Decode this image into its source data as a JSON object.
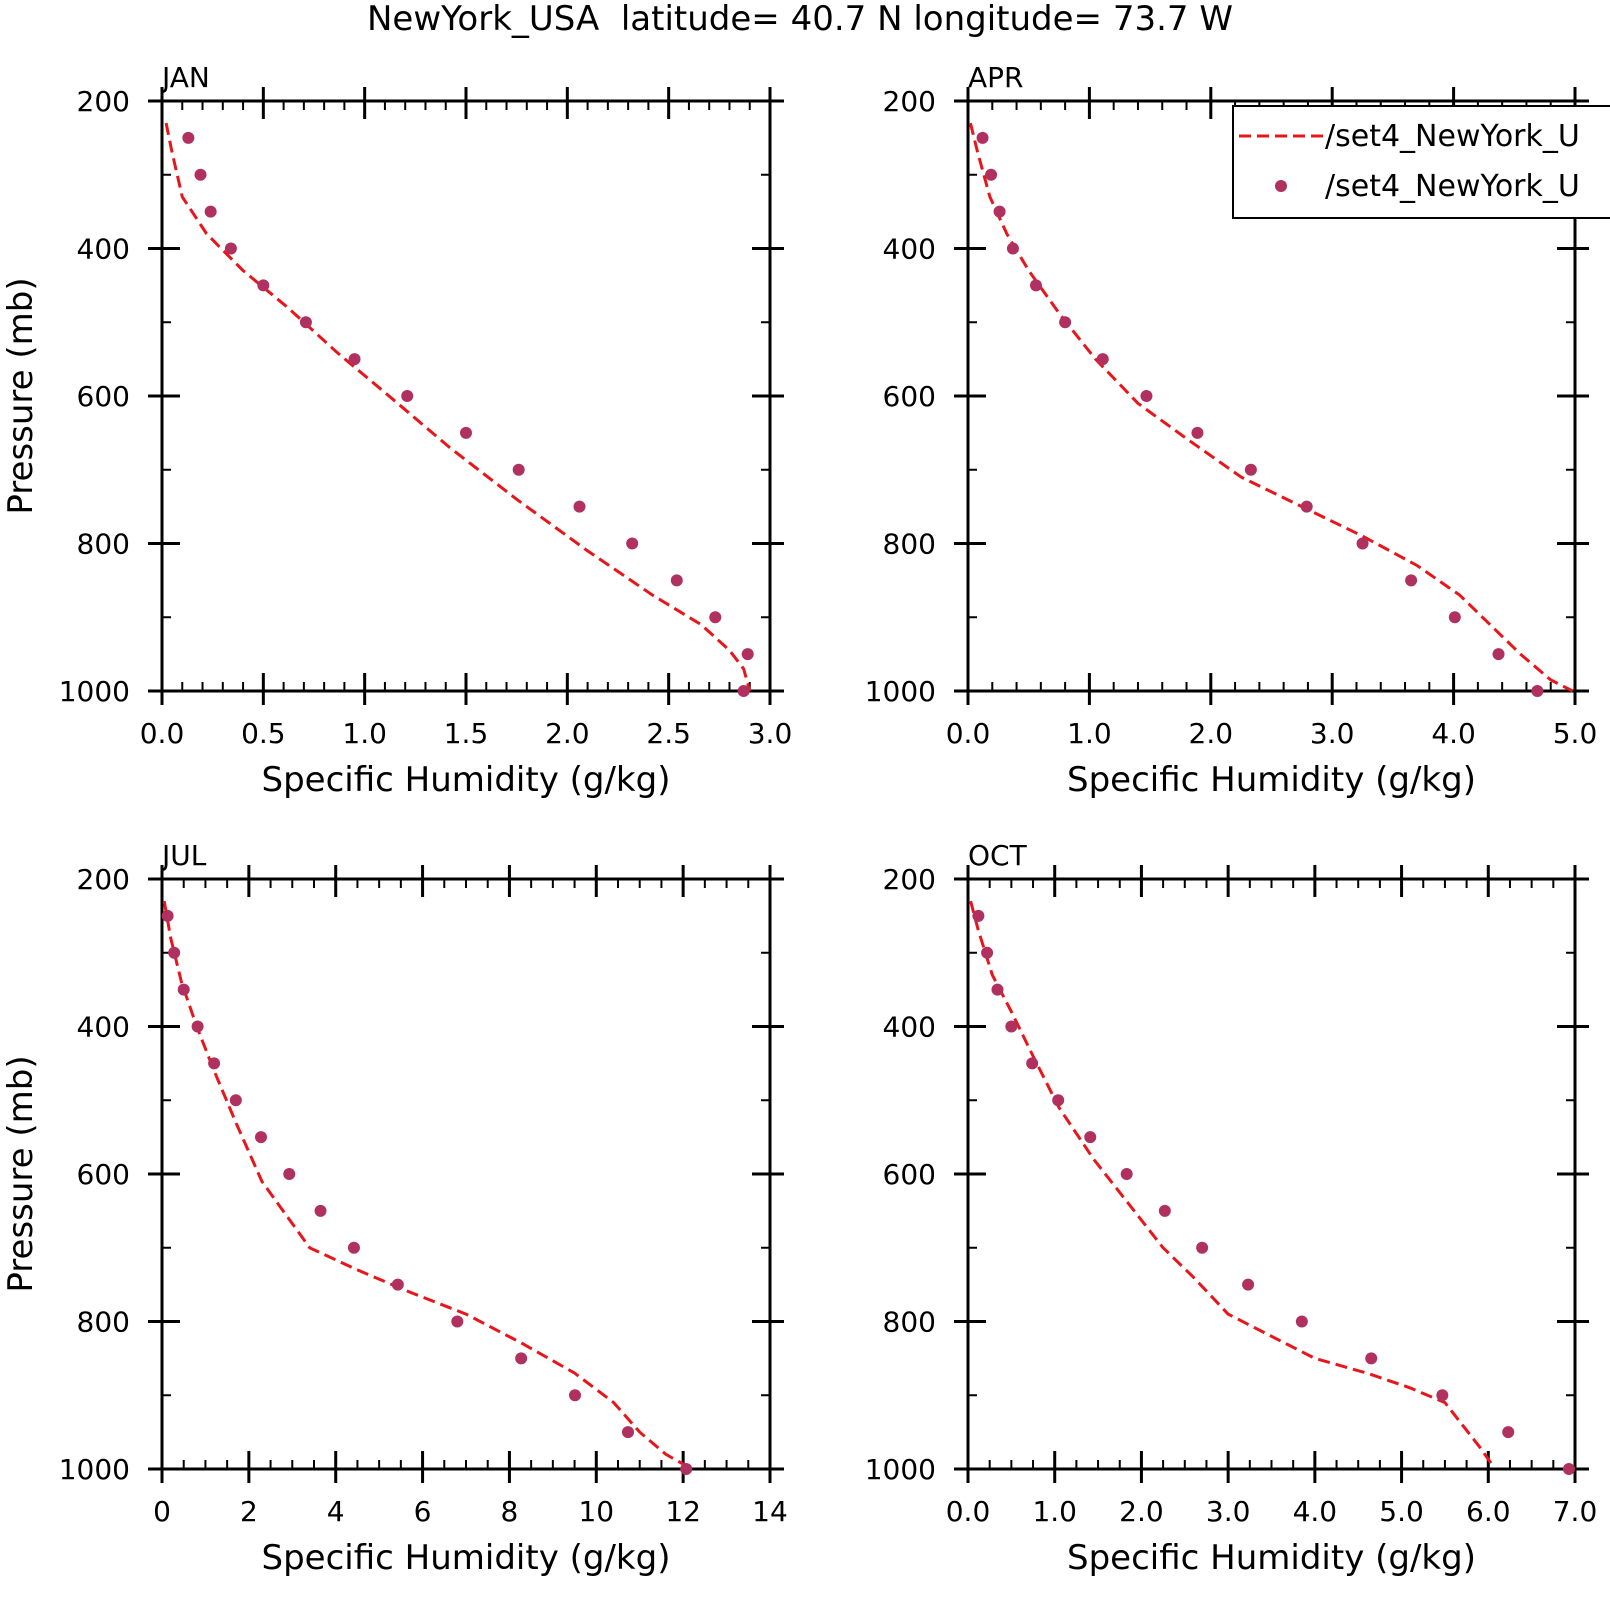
{
  "figure": {
    "title": "NewYork_USA  latitude= 40.7 N longitude= 73.7 W"
  },
  "legend": {
    "placement": "top-right of APR panel",
    "entries": [
      {
        "label": "/set4_NewYork_U",
        "style": "dashed-line",
        "color": "#e8161b"
      },
      {
        "label": "/set4_NewYork_U",
        "style": "dot",
        "color": "#b03060"
      }
    ]
  },
  "chart_data": [
    {
      "type": "line",
      "panel": "JAN",
      "title": "JAN",
      "xlabel": "Specific Humidity (g/kg)",
      "ylabel": "Pressure (mb)",
      "xlim": [
        0,
        3.0
      ],
      "ylim": [
        1000,
        200
      ],
      "yticks": [
        200,
        400,
        600,
        800,
        1000
      ],
      "xticks": [
        0,
        0.5,
        1.0,
        1.5,
        2.0,
        2.5,
        3.0
      ],
      "xtick_labels": [
        "0.0",
        "0.5",
        "1.0",
        "1.5",
        "2.0",
        "2.5",
        "3.0"
      ],
      "x_minor_step": 0.1,
      "y_minor_step": 100,
      "series": [
        {
          "style": "dashed-line",
          "color": "#e8161b",
          "x": [
            0.02,
            0.05,
            0.1,
            0.22,
            0.4,
            0.62,
            0.86,
            1.12,
            1.42,
            1.75,
            2.1,
            2.42,
            2.66,
            2.8,
            2.87,
            2.9
          ],
          "y": [
            230,
            270,
            330,
            380,
            430,
            480,
            540,
            600,
            670,
            740,
            810,
            870,
            910,
            945,
            970,
            1000
          ]
        },
        {
          "style": "dot",
          "color": "#b03060",
          "x": [
            0.13,
            0.19,
            0.24,
            0.34,
            0.5,
            0.71,
            0.95,
            1.21,
            1.5,
            1.76,
            2.06,
            2.32,
            2.54,
            2.73,
            2.89,
            2.87
          ],
          "y": [
            250,
            300,
            350,
            400,
            450,
            500,
            550,
            600,
            650,
            700,
            750,
            800,
            850,
            900,
            950,
            1000
          ]
        }
      ]
    },
    {
      "type": "line",
      "panel": "APR",
      "title": "APR",
      "xlabel": "Specific Humidity (g/kg)",
      "ylabel": "",
      "xlim": [
        0,
        5.0
      ],
      "ylim": [
        1000,
        200
      ],
      "yticks": [
        200,
        400,
        600,
        800,
        1000
      ],
      "xticks": [
        0,
        1.0,
        2.0,
        3.0,
        4.0,
        5.0
      ],
      "xtick_labels": [
        "0.0",
        "1.0",
        "2.0",
        "3.0",
        "4.0",
        "5.0"
      ],
      "x_minor_step": 0.2,
      "y_minor_step": 100,
      "series": [
        {
          "style": "dashed-line",
          "color": "#e8161b",
          "x": [
            0.02,
            0.08,
            0.18,
            0.32,
            0.5,
            0.76,
            1.05,
            1.4,
            1.82,
            2.25,
            2.75,
            3.25,
            3.7,
            4.05,
            4.3,
            4.55,
            4.8,
            4.98
          ],
          "y": [
            230,
            270,
            330,
            380,
            430,
            490,
            550,
            610,
            660,
            710,
            750,
            790,
            830,
            870,
            910,
            950,
            985,
            1000
          ]
        },
        {
          "style": "dot",
          "color": "#b03060",
          "x": [
            0.12,
            0.19,
            0.26,
            0.37,
            0.56,
            0.8,
            1.11,
            1.47,
            1.89,
            2.33,
            2.79,
            3.25,
            3.65,
            4.01,
            4.37,
            4.69
          ],
          "y": [
            250,
            300,
            350,
            400,
            450,
            500,
            550,
            600,
            650,
            700,
            750,
            800,
            850,
            900,
            950,
            1000
          ]
        }
      ]
    },
    {
      "type": "line",
      "panel": "JUL",
      "title": "JUL",
      "xlabel": "Specific Humidity (g/kg)",
      "ylabel": "Pressure (mb)",
      "xlim": [
        0,
        14
      ],
      "ylim": [
        1000,
        200
      ],
      "yticks": [
        200,
        400,
        600,
        800,
        1000
      ],
      "xticks": [
        0,
        2,
        4,
        6,
        8,
        10,
        12,
        14
      ],
      "xtick_labels": [
        "0",
        "2",
        "4",
        "6",
        "8",
        "10",
        "12",
        "14"
      ],
      "x_minor_step": 0.5,
      "y_minor_step": 100,
      "series": [
        {
          "style": "dashed-line",
          "color": "#e8161b",
          "x": [
            0.05,
            0.2,
            0.45,
            0.8,
            1.2,
            1.7,
            2.3,
            3.4,
            4.5,
            5.7,
            7.0,
            8.3,
            9.5,
            10.4,
            11.0,
            11.6,
            12.2
          ],
          "y": [
            230,
            280,
            340,
            400,
            460,
            530,
            610,
            700,
            730,
            760,
            790,
            830,
            870,
            910,
            950,
            980,
            1000
          ]
        },
        {
          "style": "dot",
          "color": "#b03060",
          "x": [
            0.13,
            0.28,
            0.5,
            0.82,
            1.2,
            1.7,
            2.28,
            2.93,
            3.65,
            4.42,
            5.43,
            6.8,
            8.27,
            9.51,
            10.73,
            12.07
          ],
          "y": [
            250,
            300,
            350,
            400,
            450,
            500,
            550,
            600,
            650,
            700,
            750,
            800,
            850,
            900,
            950,
            1000
          ]
        }
      ]
    },
    {
      "type": "line",
      "panel": "OCT",
      "title": "OCT",
      "xlabel": "Specific Humidity (g/kg)",
      "ylabel": "",
      "xlim": [
        0,
        7.0
      ],
      "ylim": [
        1000,
        200
      ],
      "yticks": [
        200,
        400,
        600,
        800,
        1000
      ],
      "xticks": [
        0,
        1.0,
        2.0,
        3.0,
        4.0,
        5.0,
        6.0,
        7.0
      ],
      "xtick_labels": [
        "0.0",
        "1.0",
        "2.0",
        "3.0",
        "4.0",
        "5.0",
        "6.0",
        "7.0"
      ],
      "x_minor_step": 0.25,
      "y_minor_step": 100,
      "series": [
        {
          "style": "dashed-line",
          "color": "#e8161b",
          "x": [
            0.03,
            0.12,
            0.28,
            0.5,
            0.75,
            1.05,
            1.45,
            1.85,
            2.25,
            2.6,
            3.0,
            3.5,
            4.0,
            4.6,
            5.1,
            5.5,
            5.7,
            5.9,
            6.05
          ],
          "y": [
            230,
            270,
            330,
            380,
            440,
            510,
            580,
            640,
            700,
            740,
            790,
            820,
            850,
            870,
            890,
            910,
            940,
            970,
            995
          ]
        },
        {
          "style": "dot",
          "color": "#b03060",
          "x": [
            0.12,
            0.22,
            0.34,
            0.5,
            0.74,
            1.04,
            1.41,
            1.83,
            2.27,
            2.7,
            3.23,
            3.85,
            4.65,
            5.47,
            6.23,
            6.93
          ],
          "y": [
            250,
            300,
            350,
            400,
            450,
            500,
            550,
            600,
            650,
            700,
            750,
            800,
            850,
            900,
            950,
            1000
          ]
        }
      ]
    }
  ]
}
